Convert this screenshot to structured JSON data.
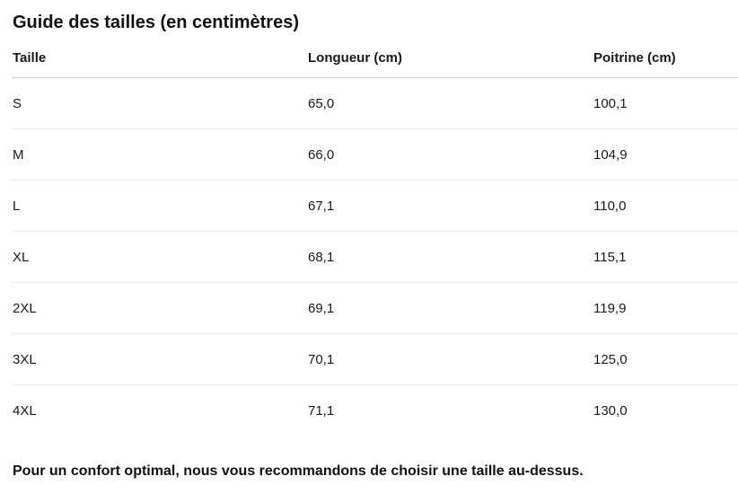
{
  "title": "Guide des tailles (en centimètres)",
  "table": {
    "columns": [
      "Taille",
      "Longueur (cm)",
      "Poitrine (cm)"
    ],
    "rows": [
      [
        "S",
        "65,0",
        "100,1"
      ],
      [
        "M",
        "66,0",
        "104,9"
      ],
      [
        "L",
        "67,1",
        "110,0"
      ],
      [
        "XL",
        "68,1",
        "115,1"
      ],
      [
        "2XL",
        "69,1",
        "119,9"
      ],
      [
        "3XL",
        "70,1",
        "125,0"
      ],
      [
        "4XL",
        "71,1",
        "130,0"
      ]
    ]
  },
  "footer_note": "Pour un confort optimal, nous vous recommandons de choisir une taille au-dessus.",
  "colors": {
    "background": "#ffffff",
    "text": "#1a1a1a",
    "header_divider": "#d2d2d2",
    "row_divider": "#ededed"
  }
}
